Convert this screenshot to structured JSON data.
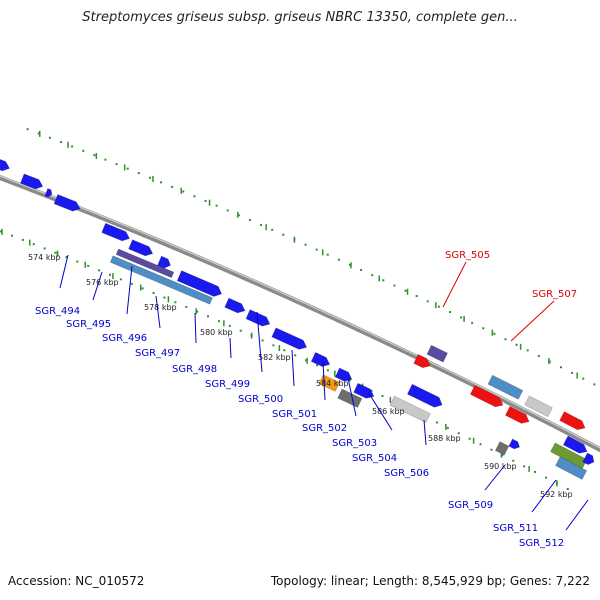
{
  "title": "Streptomyces griseus subsp. griseus NBRC 13350, complete gen...",
  "footer": {
    "accession": "Accession: NC_010572",
    "topology": "Topology: linear; Length: 8,545,929 bp; Genes: 7,222"
  },
  "colors": {
    "backbone": "#8a8a8a",
    "tick": "#2f8f2f",
    "gene_label": "#0000cc",
    "highlight_label": "#dd0000",
    "blue": "#1a1aee",
    "red": "#ee1111",
    "steel": "#4f8dc6",
    "purple": "#5a4aa0",
    "orange": "#f59a10",
    "gray": "#6d6d6d",
    "light_gray": "#c8c8c8",
    "olive": "#6a9a30"
  },
  "kbp_ticks": [
    {
      "label": "574 kbp",
      "kbp": 574
    },
    {
      "label": "576 kbp",
      "kbp": 576
    },
    {
      "label": "578 kbp",
      "kbp": 578
    },
    {
      "label": "580 kbp",
      "kbp": 580
    },
    {
      "label": "582 kbp",
      "kbp": 582
    },
    {
      "label": "584 kbp",
      "kbp": 584
    },
    {
      "label": "586 kbp",
      "kbp": 586
    },
    {
      "label": "588 kbp",
      "kbp": 588
    },
    {
      "label": "590 kbp",
      "kbp": 590
    },
    {
      "label": "592 kbp",
      "kbp": 592
    }
  ],
  "gene_labels": [
    {
      "id": "SGR_494",
      "kind": "normal"
    },
    {
      "id": "SGR_495",
      "kind": "normal"
    },
    {
      "id": "SGR_496",
      "kind": "normal"
    },
    {
      "id": "SGR_497",
      "kind": "normal"
    },
    {
      "id": "SGR_498",
      "kind": "normal"
    },
    {
      "id": "SGR_499",
      "kind": "normal"
    },
    {
      "id": "SGR_500",
      "kind": "normal"
    },
    {
      "id": "SGR_501",
      "kind": "normal"
    },
    {
      "id": "SGR_502",
      "kind": "normal"
    },
    {
      "id": "SGR_503",
      "kind": "normal"
    },
    {
      "id": "SGR_504",
      "kind": "normal"
    },
    {
      "id": "SGR_506",
      "kind": "normal"
    },
    {
      "id": "SGR_509",
      "kind": "normal"
    },
    {
      "id": "SGR_511",
      "kind": "normal"
    },
    {
      "id": "SGR_512",
      "kind": "normal"
    },
    {
      "id": "SGR_505",
      "kind": "highlight"
    },
    {
      "id": "SGR_507",
      "kind": "highlight"
    }
  ]
}
